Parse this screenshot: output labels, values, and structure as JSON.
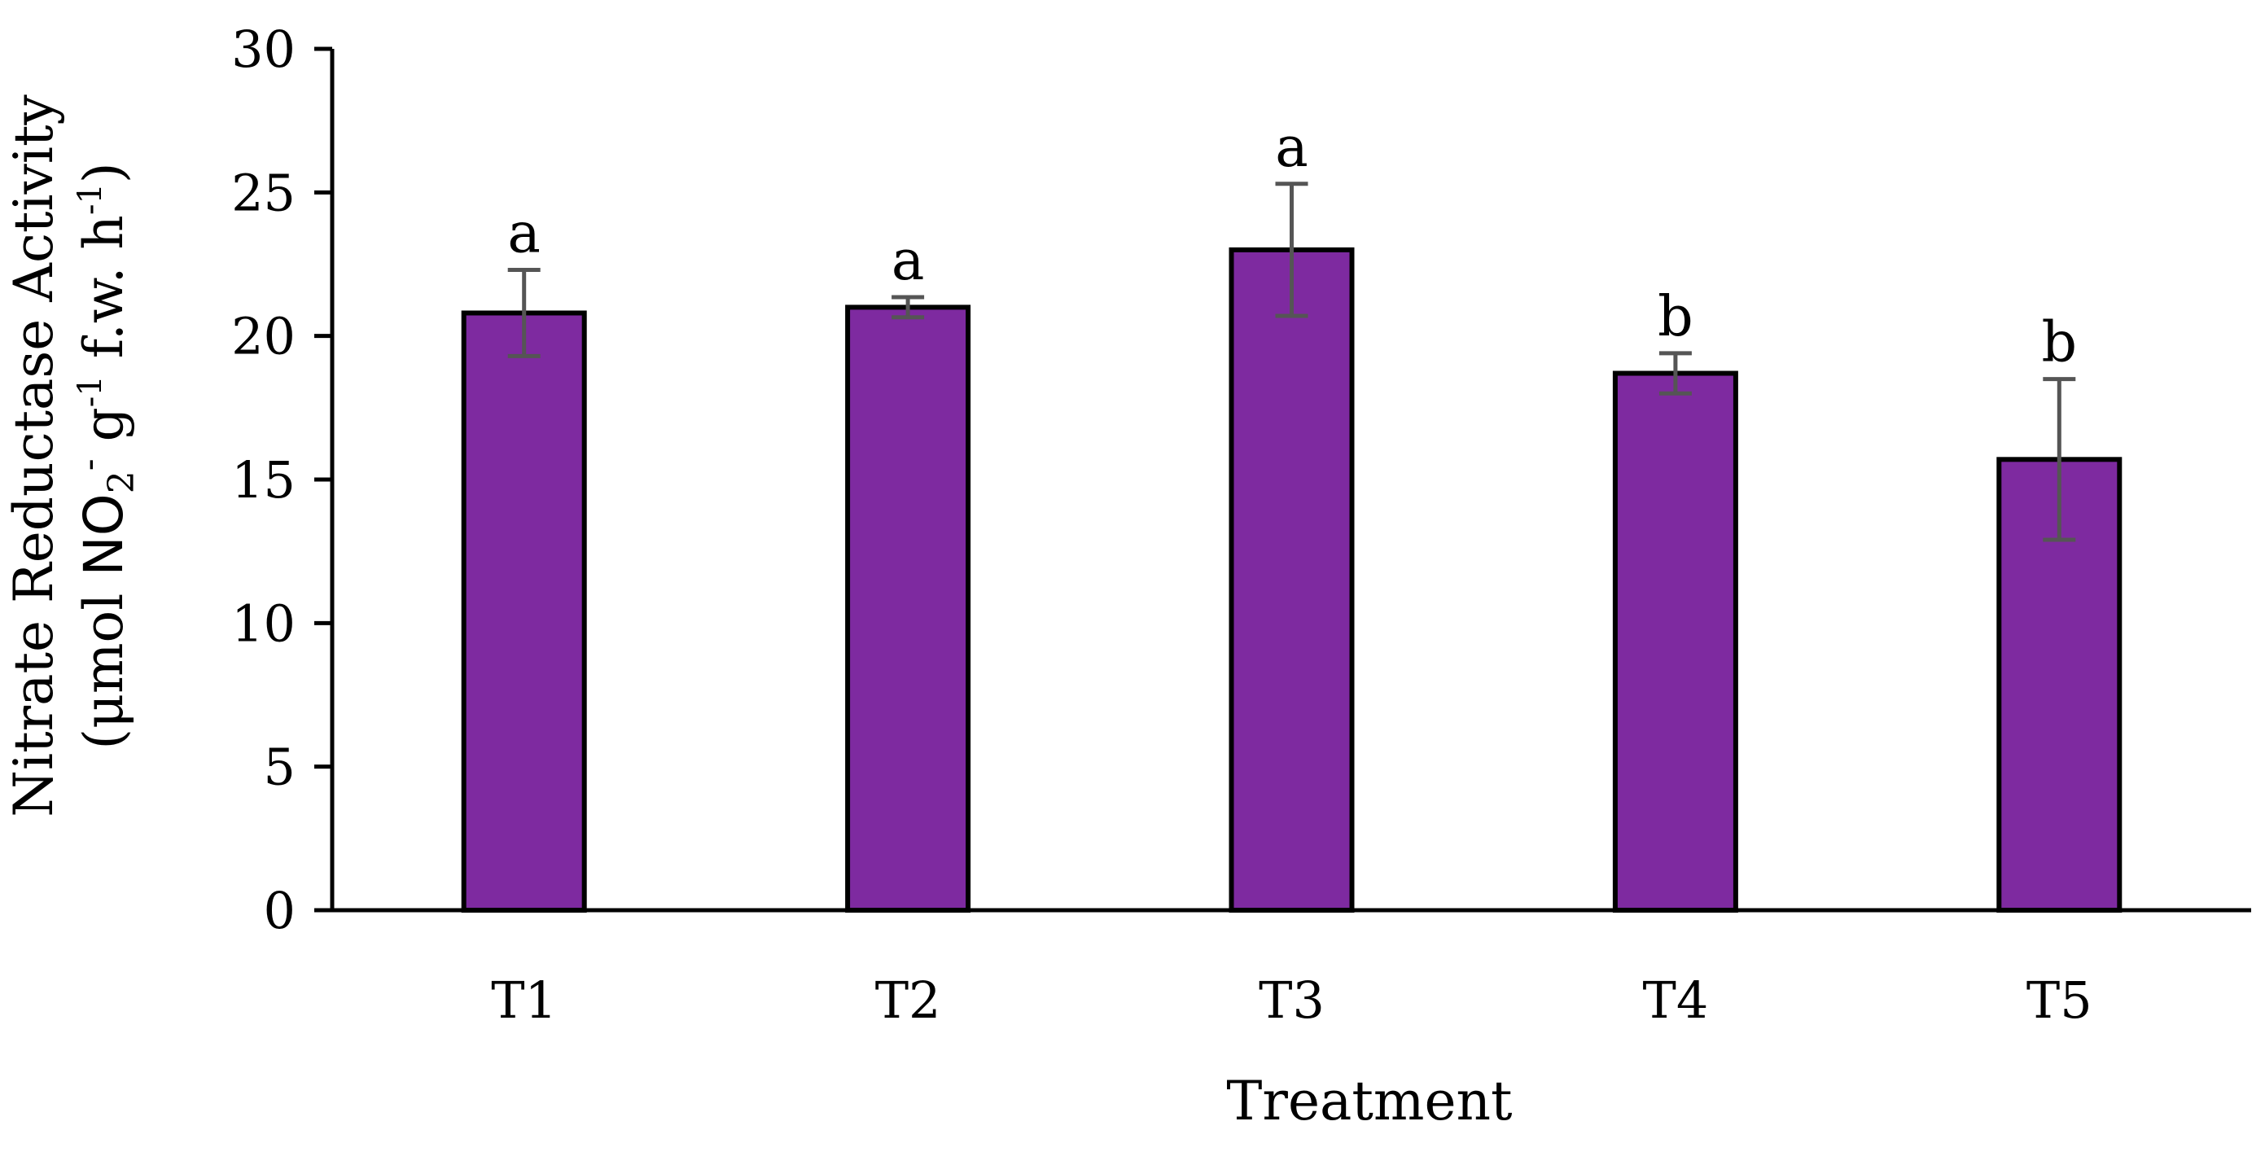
{
  "chart_data": {
    "type": "bar",
    "title": "",
    "xlabel": "Treatment",
    "ylabel": {
      "line1": "Nitrate Reductase Activity",
      "line2_pre": "(μmol ",
      "line2_no": "NO",
      "line2_sub": "2",
      "line2_sup_minus": "-",
      "line2_g": " g",
      "line2_sup1": "-1",
      "line2_mid": " f.w. h",
      "line2_sup2": "-1",
      "line2_post": ")"
    },
    "categories": [
      "T1",
      "T2",
      "T3",
      "T4",
      "T5"
    ],
    "values": [
      20.8,
      21.0,
      23.0,
      18.7,
      15.7
    ],
    "errors": [
      1.5,
      0.35,
      2.3,
      0.7,
      2.8
    ],
    "significance": [
      "a",
      "a",
      "a",
      "b",
      "b"
    ],
    "ylim": [
      0,
      30
    ],
    "yticks": [
      0,
      5,
      10,
      15,
      20,
      25,
      30
    ],
    "grid": false,
    "colors": {
      "bar_fill": "#7E2AA0",
      "bar_edge": "#000000",
      "error_bar": "#555555",
      "axis": "#000000"
    }
  }
}
